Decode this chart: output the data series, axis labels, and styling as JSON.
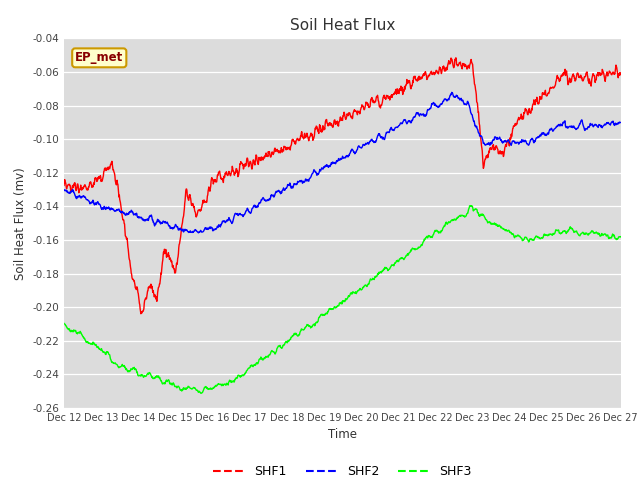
{
  "title": "Soil Heat Flux",
  "xlabel": "Time",
  "ylabel": "Soil Heat Flux (mv)",
  "ylim": [
    -0.26,
    -0.04
  ],
  "yticks": [
    -0.26,
    -0.24,
    -0.22,
    -0.2,
    -0.18,
    -0.16,
    -0.14,
    -0.12,
    -0.1,
    -0.08,
    -0.06,
    -0.04
  ],
  "bg_color": "#dcdcdc",
  "annotation_text": "EP_met",
  "annotation_bg": "#ffffcc",
  "annotation_border": "#cc9900",
  "legend_labels": [
    "SHF1",
    "SHF2",
    "SHF3"
  ],
  "line_colors": [
    "red",
    "blue",
    "lime"
  ],
  "xtick_days": [
    12,
    13,
    14,
    15,
    16,
    17,
    18,
    19,
    20,
    21,
    22,
    23,
    24,
    25,
    26,
    27
  ]
}
